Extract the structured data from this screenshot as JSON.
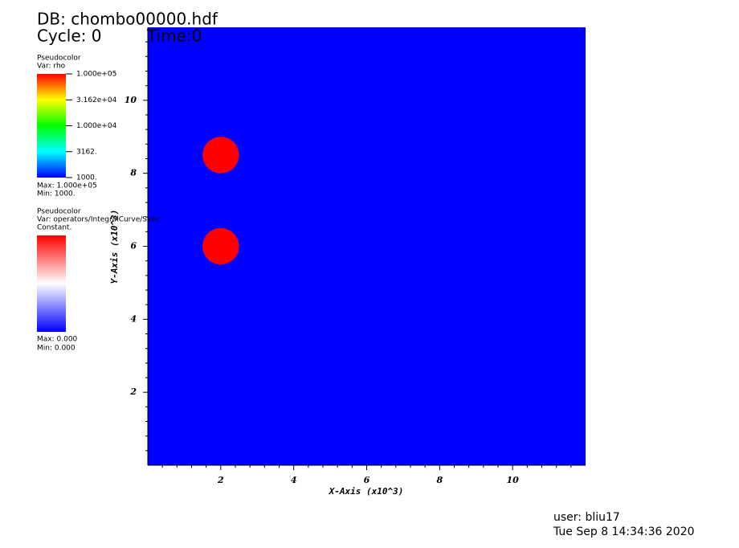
{
  "chart_data": {
    "type": "pseudocolor",
    "db": "DB: chombo00000.hdf",
    "cycle": "Cycle: 0",
    "time": "Time:0",
    "xlabel": "X-Axis (x10^3)",
    "ylabel": "Y-Axis (x10^3)",
    "xlim": [
      0,
      12
    ],
    "ylim": [
      0,
      12
    ],
    "xticks": [
      2,
      4,
      6,
      8,
      10
    ],
    "yticks": [
      2,
      4,
      6,
      8,
      10
    ],
    "background": {
      "value": 1000,
      "color": "#0000ff"
    },
    "regions": [
      {
        "x": 2,
        "y": 8.5,
        "r": 0.5,
        "value": 100000,
        "color": "#ff0000"
      },
      {
        "x": 2,
        "y": 6,
        "r": 0.5,
        "value": 100000,
        "color": "#ff0000"
      }
    ],
    "legends": [
      {
        "plot": "Pseudocolor",
        "var": "Var: rho",
        "log": true,
        "range": [
          1000,
          100000
        ],
        "ticks": [
          {
            "value": 100000,
            "label": "1.000e+05"
          },
          {
            "value": 31620,
            "label": "3.162e+04"
          },
          {
            "value": 10000,
            "label": "1.000e+04"
          },
          {
            "value": 3162,
            "label": "3162."
          },
          {
            "value": 1000,
            "label": "1000."
          }
        ],
        "max": "Max:  1.000e+05",
        "min": "Min:  1000."
      },
      {
        "plot": "Pseudocolor",
        "var": "Var: operators/IntegralCurve/Svec",
        "note": "Constant.",
        "max": "Max:  0.000",
        "min": "Min:  0.000"
      }
    ],
    "user": "user: bliu17",
    "timestamp": "Tue Sep  8 14:34:36 2020"
  }
}
